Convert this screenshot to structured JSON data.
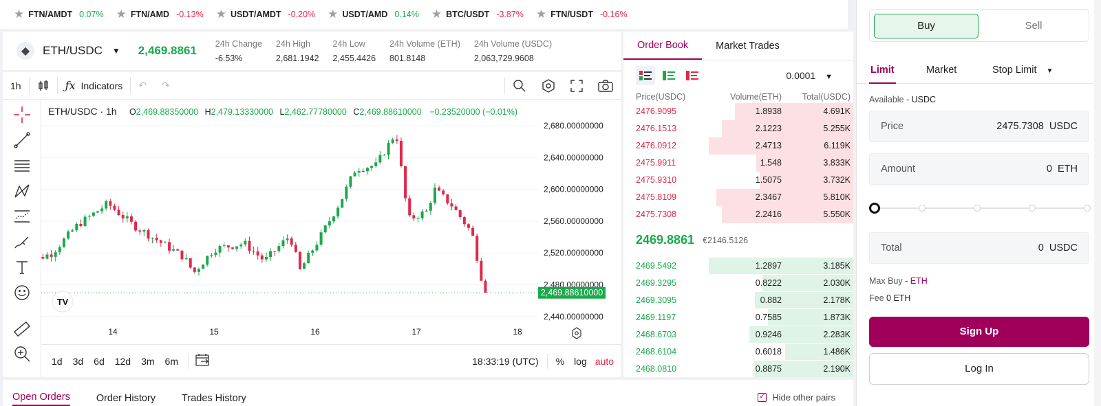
{
  "ticker": [
    {
      "pair": "FTN/AMDT",
      "change": "0.07%",
      "dir": "pos"
    },
    {
      "pair": "FTN/AMD",
      "change": "-0.13%",
      "dir": "neg"
    },
    {
      "pair": "USDT/AMDT",
      "change": "-0.20%",
      "dir": "neg"
    },
    {
      "pair": "USDT/AMD",
      "change": "0.14%",
      "dir": "pos"
    },
    {
      "pair": "BTC/USDT",
      "change": "-3.87%",
      "dir": "neg"
    },
    {
      "pair": "FTN/USDT",
      "change": "-0.16%",
      "dir": "neg"
    }
  ],
  "header": {
    "pair": "ETH/USDC",
    "last_price": "2,469.8861",
    "stats": [
      {
        "label": "24h Change",
        "value": "-6.53%",
        "dir": "neg"
      },
      {
        "label": "24h High",
        "value": "2,681.1942",
        "dir": ""
      },
      {
        "label": "24h Low",
        "value": "2,455.4426",
        "dir": ""
      },
      {
        "label": "24h Volume (ETH)",
        "value": "801.8148",
        "dir": ""
      },
      {
        "label": "24h Volume (USDC)",
        "value": "2,063,729.9608",
        "dir": ""
      }
    ]
  },
  "chart": {
    "interval": "1h",
    "indicators_label": "Indicators",
    "legend_title": "ETH/USDC · 1h",
    "ohlc": {
      "o": "2,469.88350000",
      "h": "2,479.13330000",
      "l": "2,462.77780000",
      "c": "2,469.88610000",
      "chg": "−0.23520000 (−0.01%)"
    },
    "ranges": [
      "1d",
      "3d",
      "6d",
      "12d",
      "3m",
      "6m"
    ],
    "clock": "18:33:19 (UTC)",
    "pct_label": "%",
    "log_label": "log",
    "auto_label": "auto",
    "price_label": "2,469.88610000",
    "logo": "TV"
  },
  "chart_data": {
    "type": "candlestick",
    "y_ticks": [
      {
        "value": 2680,
        "label": "2,680.00000000"
      },
      {
        "value": 2640,
        "label": "2,640.00000000"
      },
      {
        "value": 2600,
        "label": "2,600.00000000"
      },
      {
        "value": 2560,
        "label": "2,560.00000000"
      },
      {
        "value": 2520,
        "label": "2,520.00000000"
      },
      {
        "value": 2480,
        "label": "2,480.00000000"
      },
      {
        "value": 2440,
        "label": "2,440.00000000"
      }
    ],
    "x_ticks": [
      {
        "day": 14,
        "label": "14"
      },
      {
        "day": 15,
        "label": "15"
      },
      {
        "day": 16,
        "label": "16"
      },
      {
        "day": 17,
        "label": "17"
      },
      {
        "day": 18,
        "label": "18"
      }
    ],
    "last_close": 2469.8861,
    "colors": {
      "up": "#1ba94c",
      "down": "#e0294a"
    },
    "anchors": [
      {
        "day": 13.1,
        "close": 2505
      },
      {
        "day": 13.4,
        "close": 2520
      },
      {
        "day": 13.65,
        "close": 2555
      },
      {
        "day": 13.95,
        "close": 2582
      },
      {
        "day": 14.2,
        "close": 2555
      },
      {
        "day": 14.45,
        "close": 2535
      },
      {
        "day": 14.7,
        "close": 2515
      },
      {
        "day": 14.8,
        "close": 2495
      },
      {
        "day": 15.0,
        "close": 2525
      },
      {
        "day": 15.3,
        "close": 2532
      },
      {
        "day": 15.5,
        "close": 2510
      },
      {
        "day": 15.75,
        "close": 2542
      },
      {
        "day": 15.85,
        "close": 2498
      },
      {
        "day": 16.05,
        "close": 2540
      },
      {
        "day": 16.25,
        "close": 2585
      },
      {
        "day": 16.4,
        "close": 2626
      },
      {
        "day": 16.6,
        "close": 2630
      },
      {
        "day": 16.8,
        "close": 2672
      },
      {
        "day": 16.92,
        "close": 2562
      },
      {
        "day": 17.1,
        "close": 2572
      },
      {
        "day": 17.18,
        "close": 2600
      },
      {
        "day": 17.35,
        "close": 2580
      },
      {
        "day": 17.55,
        "close": 2545
      },
      {
        "day": 17.65,
        "close": 2485
      },
      {
        "day": 17.72,
        "close": 2469.9
      }
    ]
  },
  "orderbook": {
    "tabs": [
      "Order Book",
      "Market Trades"
    ],
    "precision": "0.0001",
    "headers": [
      "Price(USDC)",
      "Volume(ETH)",
      "Total(USDC)"
    ],
    "asks": [
      {
        "price": "2476.9095",
        "volume": "1.8938",
        "total": "4.691K",
        "depth": 0.82
      },
      {
        "price": "2476.1513",
        "volume": "2.1223",
        "total": "5.255K",
        "depth": 0.91
      },
      {
        "price": "2476.0912",
        "volume": "2.4713",
        "total": "6.119K",
        "depth": 1.0
      },
      {
        "price": "2475.9911",
        "volume": "1.548",
        "total": "3.833K",
        "depth": 0.67
      },
      {
        "price": "2475.9310",
        "volume": "1.5075",
        "total": "3.732K",
        "depth": 0.65
      },
      {
        "price": "2475.8109",
        "volume": "2.3467",
        "total": "5.810K",
        "depth": 0.95
      },
      {
        "price": "2475.7308",
        "volume": "2.2416",
        "total": "5.550K",
        "depth": 0.91
      }
    ],
    "mid_price": "2469.8861",
    "mid_fiat": "€2146.5126",
    "bids": [
      {
        "price": "2469.5492",
        "volume": "1.2897",
        "total": "3.185K",
        "depth": 1.0
      },
      {
        "price": "2469.3295",
        "volume": "0.8222",
        "total": "2.030K",
        "depth": 0.63
      },
      {
        "price": "2469.3095",
        "volume": "0.882",
        "total": "2.178K",
        "depth": 0.68
      },
      {
        "price": "2469.1197",
        "volume": "0.7585",
        "total": "1.873K",
        "depth": 0.59
      },
      {
        "price": "2468.6703",
        "volume": "0.9246",
        "total": "2.283K",
        "depth": 0.72
      },
      {
        "price": "2468.6104",
        "volume": "0.6018",
        "total": "1.486K",
        "depth": 0.47
      },
      {
        "price": "2468.0810",
        "volume": "0.8875",
        "total": "2.190K",
        "depth": 0.69
      }
    ]
  },
  "orders": {
    "tabs": [
      "Open Orders",
      "Order History",
      "Trades History"
    ],
    "hide_pairs_label": "Hide other pairs"
  },
  "trade": {
    "buy": "Buy",
    "sell": "Sell",
    "order_types": [
      "Limit",
      "Market",
      "Stop Limit"
    ],
    "available_label": "Available",
    "available_value": "- USDC",
    "price_label": "Price",
    "price_value": "2475.7308",
    "price_unit": "USDC",
    "amount_label": "Amount",
    "amount_value": "0",
    "amount_unit": "ETH",
    "total_label": "Total",
    "total_value": "0",
    "total_unit": "USDC",
    "slider_fraction": 0,
    "max_buy_label": "Max Buy",
    "max_buy_value": "- ETH",
    "fee_label": "Fee",
    "fee_value": "0 ETH",
    "signup": "Sign Up",
    "login": "Log In"
  }
}
